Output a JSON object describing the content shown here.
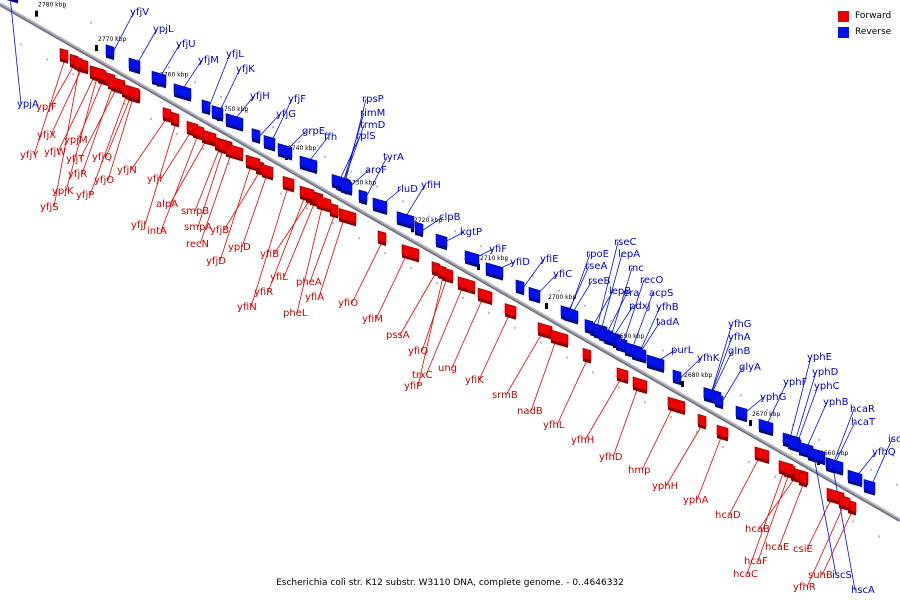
{
  "legend": {
    "forward_label": "Forward",
    "reverse_label": "Reverse",
    "forward_color": "#ee0000",
    "reverse_color": "#0011ee"
  },
  "caption": "Escherichia coli str. K12 substr. W3110 DNA, complete genome. - 0..4646332",
  "ticks": [
    "2780 kbp",
    "2770 kbp",
    "2760 kbp",
    "2750 kbp",
    "2740 kbp",
    "2730 kbp",
    "2720 kbp",
    "2710 kbp",
    "2700 kbp",
    "2690 kbp",
    "2680 kbp",
    "2670 kbp",
    "2660 kbp"
  ],
  "reverse_genes": [
    "yfjV",
    "ypjL",
    "yfjU",
    "yfjM",
    "yfjL",
    "yfjK",
    "ypjA",
    "yfjH",
    "yfjG",
    "yfjF",
    "grpE",
    "ffh",
    "rpsP",
    "rimM",
    "trmD",
    "rplS",
    "tyrA",
    "aroF",
    "rluD",
    "yfiH",
    "clpB",
    "kgtP",
    "yfiF",
    "yfiD",
    "yfiE",
    "yfiC",
    "rpoE",
    "rseC",
    "rseA",
    "lepA",
    "rseB",
    "rnc",
    "lepB",
    "recO",
    "era",
    "acpS",
    "pdxJ",
    "yfhB",
    "tadA",
    "purL",
    "yfhK",
    "yfhG",
    "yfhA",
    "glnB",
    "glyA",
    "yphG",
    "yphF",
    "yphE",
    "yphD",
    "yphC",
    "yphB",
    "hcaR",
    "hcaT",
    "iscR",
    "yfhQ",
    "iscS",
    "hscA"
  ],
  "forward_genes": [
    "ypjF",
    "yfjX",
    "yfjW",
    "ypjM",
    "yfjY",
    "yfjT",
    "yfjQ",
    "yfjR",
    "yfjN",
    "yfjO",
    "ypjK",
    "yfjP",
    "yfjS",
    "yfjI",
    "alpA",
    "smpB",
    "yfjJ",
    "intA",
    "smpA",
    "recN",
    "yfjB",
    "ypjD",
    "yfjD",
    "yfiB",
    "pheA",
    "yfiL",
    "yfiR",
    "yfiA",
    "yfiO",
    "yfiN",
    "pheL",
    "yfiM",
    "pssA",
    "yfiQ",
    "ung",
    "trxC",
    "yfiP",
    "yfiK",
    "srmB",
    "nadB",
    "yfhL",
    "yfhH",
    "yfhD",
    "hmp",
    "yphH",
    "yphA",
    "hcaD",
    "hcaB",
    "hcaE",
    "hcaF",
    "hcaC",
    "csiE",
    "suhB",
    "yfhR"
  ]
}
